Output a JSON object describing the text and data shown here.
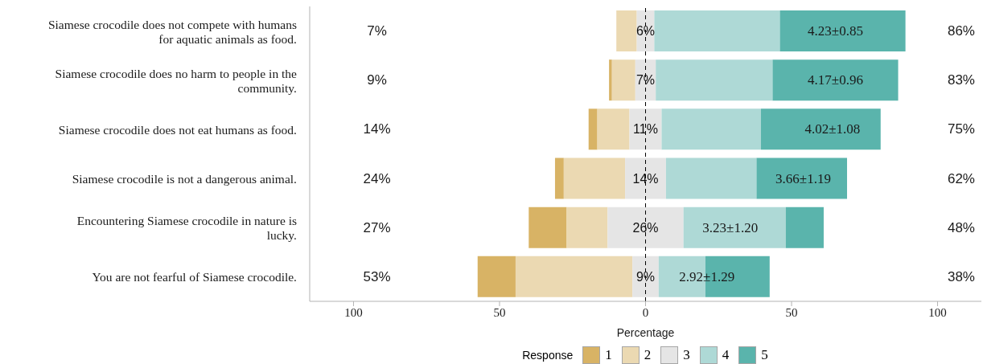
{
  "chart_data": {
    "type": "bar",
    "orientation": "horizontal",
    "xlabel": "Percentage",
    "legend_title": "Response",
    "legend": "bottom",
    "categories": [
      "Siamese crocodile does not compete with humans for aquatic animals as food.",
      "Siamese crocodile does no harm to people in the community.",
      "Siamese crocodile does not eat humans as food.",
      "Siamese crocodile is not a dangerous animal.",
      "Encountering Siamese crocodile in nature is lucky.",
      "You are not fearful of Siamese crocodile."
    ],
    "series": [
      {
        "name": "1",
        "color": "#d8b365",
        "values": [
          null,
          1,
          3,
          3,
          13,
          13
        ],
        "base": [
          null,
          -12.5,
          -19.5,
          -31,
          -40,
          -57.5
        ]
      },
      {
        "name": "2",
        "color": "#ebd9b2",
        "values": [
          7,
          8,
          11,
          21,
          14,
          40
        ],
        "base": [
          -10,
          -11.5,
          -16.5,
          -28,
          -27,
          -44.5
        ]
      },
      {
        "name": "3",
        "color": "#e5e5e5",
        "values": [
          6,
          7,
          11,
          14,
          26,
          9
        ],
        "base": [
          -3,
          -3.5,
          -5.5,
          -7,
          -13,
          -4.5
        ],
        "value_labels": [
          "6%",
          "7%",
          "11%",
          "14%",
          "26%",
          "9%"
        ]
      },
      {
        "name": "4",
        "color": "#aed9d6",
        "values": [
          43,
          40,
          34,
          31,
          35,
          16
        ],
        "base": [
          3,
          3.5,
          5.5,
          7,
          13,
          4.5
        ]
      },
      {
        "name": "5",
        "color": "#5ab4ac",
        "values": [
          43,
          43,
          41,
          31,
          13,
          22
        ],
        "base": [
          46,
          43.5,
          39.5,
          38,
          48,
          20.5
        ]
      }
    ],
    "xlim": [
      -115,
      115
    ],
    "xticks": [
      {
        "value": -100,
        "label": "100"
      },
      {
        "value": -50,
        "label": "50"
      },
      0,
      50,
      100
    ],
    "ref_lines": [
      {
        "axis": "x",
        "value": 0,
        "label": null,
        "color": "#000000",
        "line_style": "dashed"
      }
    ],
    "annotations": [
      "7%",
      "9%",
      "14%",
      "24%",
      "27%",
      "53%",
      "86%",
      "83%",
      "75%",
      "62%",
      "48%",
      "38%",
      {
        "text": "4.23±0.85",
        "x": 65,
        "y": "Siamese crocodile does not compete with humans for aquatic animals as food."
      },
      {
        "text": "4.17±0.96",
        "x": 65,
        "y": "Siamese crocodile does no harm to people in the community."
      },
      {
        "text": "4.02±1.08",
        "x": 64,
        "y": "Siamese crocodile does not eat humans as food."
      },
      {
        "text": "3.66±1.19",
        "x": 54,
        "y": "Siamese crocodile is not a dangerous animal."
      },
      {
        "text": "3.23±1.20",
        "x": 29,
        "y": "Encountering Siamese crocodile in nature is lucky."
      },
      {
        "text": "2.92±1.29",
        "x": 21,
        "y": "You are not fearful of Siamese crocodile."
      }
    ]
  }
}
